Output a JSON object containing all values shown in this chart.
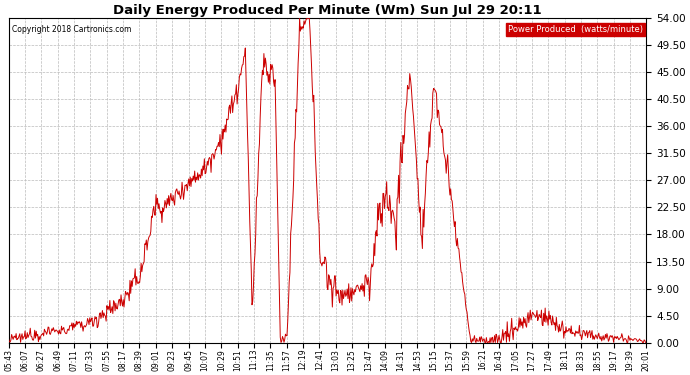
{
  "title": "Daily Energy Produced Per Minute (Wm) Sun Jul 29 20:11",
  "copyright": "Copyright 2018 Cartronics.com",
  "legend_label": "Power Produced  (watts/minute)",
  "legend_bg": "#cc0000",
  "legend_text_color": "#ffffff",
  "line_color": "#cc0000",
  "bg_color": "#ffffff",
  "grid_color": "#bbbbbb",
  "ylim": [
    0,
    54.0
  ],
  "yticks": [
    0.0,
    4.5,
    9.0,
    13.5,
    18.0,
    22.5,
    27.0,
    31.5,
    36.0,
    40.5,
    45.0,
    49.5,
    54.0
  ],
  "xtick_labels": [
    "05:43",
    "06:07",
    "06:27",
    "06:49",
    "07:11",
    "07:33",
    "07:55",
    "08:17",
    "08:39",
    "09:01",
    "09:23",
    "09:45",
    "10:07",
    "10:29",
    "10:51",
    "11:13",
    "11:35",
    "11:57",
    "12:19",
    "12:41",
    "13:03",
    "13:25",
    "13:47",
    "14:09",
    "14:31",
    "14:53",
    "15:15",
    "15:37",
    "15:59",
    "16:21",
    "16:43",
    "17:05",
    "17:27",
    "17:49",
    "18:11",
    "18:33",
    "18:55",
    "19:17",
    "19:39",
    "20:01"
  ],
  "figsize": [
    6.9,
    3.75
  ],
  "dpi": 100
}
